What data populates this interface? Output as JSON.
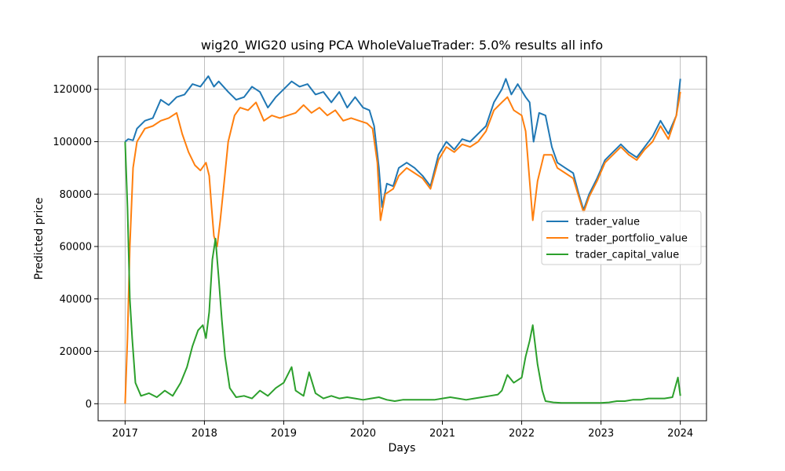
{
  "chart_data": {
    "type": "line",
    "title": "wig20_WIG20 using PCA WholeValueTrader: 5.0% results all info",
    "xlabel": "Days",
    "ylabel": "Predicted price",
    "xlim": [
      2016.66,
      2024.33
    ],
    "ylim": [
      -6500,
      132500
    ],
    "x_ticks": [
      2017,
      2018,
      2019,
      2020,
      2021,
      2022,
      2023,
      2024
    ],
    "x_tick_labels": [
      "2017",
      "2018",
      "2019",
      "2020",
      "2021",
      "2022",
      "2023",
      "2024"
    ],
    "y_ticks": [
      0,
      20000,
      40000,
      60000,
      80000,
      100000,
      120000
    ],
    "y_tick_labels": [
      "0",
      "20000",
      "40000",
      "60000",
      "80000",
      "100000",
      "120000"
    ],
    "grid": true,
    "legend_position": "center-right",
    "series": [
      {
        "name": "trader_value",
        "color": "#1f77b4",
        "points": [
          [
            2017.0,
            100000
          ],
          [
            2017.04,
            101000
          ],
          [
            2017.1,
            100500
          ],
          [
            2017.15,
            105000
          ],
          [
            2017.25,
            108000
          ],
          [
            2017.35,
            109000
          ],
          [
            2017.45,
            116000
          ],
          [
            2017.55,
            114000
          ],
          [
            2017.65,
            117000
          ],
          [
            2017.75,
            118000
          ],
          [
            2017.85,
            122000
          ],
          [
            2017.95,
            121000
          ],
          [
            2018.05,
            125000
          ],
          [
            2018.12,
            121000
          ],
          [
            2018.18,
            123000
          ],
          [
            2018.3,
            119000
          ],
          [
            2018.4,
            116000
          ],
          [
            2018.5,
            117000
          ],
          [
            2018.6,
            121000
          ],
          [
            2018.7,
            119000
          ],
          [
            2018.8,
            113000
          ],
          [
            2018.9,
            117000
          ],
          [
            2019.0,
            120000
          ],
          [
            2019.1,
            123000
          ],
          [
            2019.2,
            121000
          ],
          [
            2019.3,
            122000
          ],
          [
            2019.4,
            118000
          ],
          [
            2019.5,
            119000
          ],
          [
            2019.6,
            115000
          ],
          [
            2019.7,
            119000
          ],
          [
            2019.8,
            113000
          ],
          [
            2019.9,
            117000
          ],
          [
            2020.0,
            113000
          ],
          [
            2020.08,
            112000
          ],
          [
            2020.14,
            106000
          ],
          [
            2020.2,
            90000
          ],
          [
            2020.24,
            75000
          ],
          [
            2020.3,
            84000
          ],
          [
            2020.38,
            83000
          ],
          [
            2020.45,
            90000
          ],
          [
            2020.55,
            92000
          ],
          [
            2020.65,
            90000
          ],
          [
            2020.75,
            87000
          ],
          [
            2020.85,
            83000
          ],
          [
            2020.95,
            95000
          ],
          [
            2021.05,
            100000
          ],
          [
            2021.15,
            97000
          ],
          [
            2021.25,
            101000
          ],
          [
            2021.35,
            100000
          ],
          [
            2021.45,
            103000
          ],
          [
            2021.55,
            106000
          ],
          [
            2021.65,
            115000
          ],
          [
            2021.75,
            120000
          ],
          [
            2021.8,
            124000
          ],
          [
            2021.87,
            118000
          ],
          [
            2021.95,
            122000
          ],
          [
            2022.05,
            117000
          ],
          [
            2022.1,
            115000
          ],
          [
            2022.15,
            100000
          ],
          [
            2022.22,
            111000
          ],
          [
            2022.3,
            110000
          ],
          [
            2022.38,
            98000
          ],
          [
            2022.45,
            92000
          ],
          [
            2022.55,
            90000
          ],
          [
            2022.65,
            88000
          ],
          [
            2022.72,
            80000
          ],
          [
            2022.78,
            74000
          ],
          [
            2022.85,
            80000
          ],
          [
            2022.95,
            86000
          ],
          [
            2023.05,
            93000
          ],
          [
            2023.15,
            96000
          ],
          [
            2023.25,
            99000
          ],
          [
            2023.35,
            96000
          ],
          [
            2023.45,
            94000
          ],
          [
            2023.55,
            98000
          ],
          [
            2023.65,
            102000
          ],
          [
            2023.75,
            108000
          ],
          [
            2023.85,
            103000
          ],
          [
            2023.95,
            110000
          ],
          [
            2024.0,
            124000
          ]
        ]
      },
      {
        "name": "trader_portfolio_value",
        "color": "#ff7f0e",
        "points": [
          [
            2017.0,
            0
          ],
          [
            2017.03,
            25000
          ],
          [
            2017.06,
            60000
          ],
          [
            2017.1,
            90000
          ],
          [
            2017.15,
            100000
          ],
          [
            2017.25,
            105000
          ],
          [
            2017.35,
            106000
          ],
          [
            2017.45,
            108000
          ],
          [
            2017.55,
            109000
          ],
          [
            2017.65,
            111000
          ],
          [
            2017.72,
            103000
          ],
          [
            2017.8,
            96000
          ],
          [
            2017.88,
            91000
          ],
          [
            2017.95,
            89000
          ],
          [
            2018.02,
            92000
          ],
          [
            2018.06,
            87000
          ],
          [
            2018.09,
            75000
          ],
          [
            2018.12,
            64000
          ],
          [
            2018.16,
            60000
          ],
          [
            2018.2,
            70000
          ],
          [
            2018.25,
            85000
          ],
          [
            2018.3,
            100000
          ],
          [
            2018.38,
            110000
          ],
          [
            2018.45,
            113000
          ],
          [
            2018.55,
            112000
          ],
          [
            2018.65,
            115000
          ],
          [
            2018.75,
            108000
          ],
          [
            2018.85,
            110000
          ],
          [
            2018.95,
            109000
          ],
          [
            2019.05,
            110000
          ],
          [
            2019.15,
            111000
          ],
          [
            2019.25,
            114000
          ],
          [
            2019.35,
            111000
          ],
          [
            2019.45,
            113000
          ],
          [
            2019.55,
            110000
          ],
          [
            2019.65,
            112000
          ],
          [
            2019.75,
            108000
          ],
          [
            2019.85,
            109000
          ],
          [
            2019.95,
            108000
          ],
          [
            2020.05,
            107000
          ],
          [
            2020.12,
            105000
          ],
          [
            2020.18,
            92000
          ],
          [
            2020.22,
            70000
          ],
          [
            2020.28,
            80000
          ],
          [
            2020.38,
            82000
          ],
          [
            2020.45,
            87000
          ],
          [
            2020.55,
            90000
          ],
          [
            2020.65,
            88000
          ],
          [
            2020.75,
            86000
          ],
          [
            2020.85,
            82000
          ],
          [
            2020.95,
            93000
          ],
          [
            2021.05,
            98000
          ],
          [
            2021.15,
            96000
          ],
          [
            2021.25,
            99000
          ],
          [
            2021.35,
            98000
          ],
          [
            2021.45,
            100000
          ],
          [
            2021.55,
            104000
          ],
          [
            2021.65,
            112000
          ],
          [
            2021.75,
            115000
          ],
          [
            2021.82,
            117000
          ],
          [
            2021.9,
            112000
          ],
          [
            2022.0,
            110000
          ],
          [
            2022.05,
            104000
          ],
          [
            2022.1,
            85000
          ],
          [
            2022.14,
            70000
          ],
          [
            2022.2,
            85000
          ],
          [
            2022.28,
            95000
          ],
          [
            2022.38,
            95000
          ],
          [
            2022.45,
            90000
          ],
          [
            2022.55,
            88000
          ],
          [
            2022.65,
            86000
          ],
          [
            2022.72,
            79000
          ],
          [
            2022.78,
            73000
          ],
          [
            2022.85,
            79000
          ],
          [
            2022.95,
            85000
          ],
          [
            2023.05,
            92000
          ],
          [
            2023.15,
            95000
          ],
          [
            2023.25,
            98000
          ],
          [
            2023.35,
            95000
          ],
          [
            2023.45,
            93000
          ],
          [
            2023.55,
            97000
          ],
          [
            2023.65,
            100000
          ],
          [
            2023.75,
            106000
          ],
          [
            2023.85,
            101000
          ],
          [
            2023.95,
            110000
          ],
          [
            2024.0,
            119000
          ]
        ]
      },
      {
        "name": "trader_capital_value",
        "color": "#2ca02c",
        "points": [
          [
            2017.0,
            100000
          ],
          [
            2017.03,
            75000
          ],
          [
            2017.06,
            40000
          ],
          [
            2017.09,
            25000
          ],
          [
            2017.13,
            8000
          ],
          [
            2017.2,
            3000
          ],
          [
            2017.3,
            4000
          ],
          [
            2017.4,
            2500
          ],
          [
            2017.5,
            5000
          ],
          [
            2017.6,
            3000
          ],
          [
            2017.7,
            8000
          ],
          [
            2017.78,
            14000
          ],
          [
            2017.85,
            22000
          ],
          [
            2017.92,
            28000
          ],
          [
            2017.98,
            30000
          ],
          [
            2018.02,
            25000
          ],
          [
            2018.06,
            35000
          ],
          [
            2018.1,
            55000
          ],
          [
            2018.14,
            63000
          ],
          [
            2018.18,
            48000
          ],
          [
            2018.22,
            32000
          ],
          [
            2018.26,
            18000
          ],
          [
            2018.32,
            6000
          ],
          [
            2018.4,
            2500
          ],
          [
            2018.5,
            3000
          ],
          [
            2018.6,
            2000
          ],
          [
            2018.7,
            5000
          ],
          [
            2018.8,
            3000
          ],
          [
            2018.9,
            6000
          ],
          [
            2019.0,
            8000
          ],
          [
            2019.1,
            14000
          ],
          [
            2019.15,
            5000
          ],
          [
            2019.25,
            3000
          ],
          [
            2019.32,
            12000
          ],
          [
            2019.4,
            4000
          ],
          [
            2019.5,
            2000
          ],
          [
            2019.6,
            3000
          ],
          [
            2019.7,
            2000
          ],
          [
            2019.8,
            2500
          ],
          [
            2019.9,
            2000
          ],
          [
            2020.0,
            1500
          ],
          [
            2020.1,
            2000
          ],
          [
            2020.2,
            2500
          ],
          [
            2020.3,
            1500
          ],
          [
            2020.4,
            1000
          ],
          [
            2020.5,
            1500
          ],
          [
            2020.6,
            1500
          ],
          [
            2020.7,
            1500
          ],
          [
            2020.8,
            1500
          ],
          [
            2020.9,
            1500
          ],
          [
            2021.0,
            2000
          ],
          [
            2021.1,
            2500
          ],
          [
            2021.2,
            2000
          ],
          [
            2021.3,
            1500
          ],
          [
            2021.4,
            2000
          ],
          [
            2021.5,
            2500
          ],
          [
            2021.6,
            3000
          ],
          [
            2021.7,
            3500
          ],
          [
            2021.75,
            5000
          ],
          [
            2021.82,
            11000
          ],
          [
            2021.9,
            8000
          ],
          [
            2022.0,
            10000
          ],
          [
            2022.05,
            18000
          ],
          [
            2022.1,
            24000
          ],
          [
            2022.14,
            30000
          ],
          [
            2022.2,
            15000
          ],
          [
            2022.26,
            5000
          ],
          [
            2022.3,
            1000
          ],
          [
            2022.4,
            500
          ],
          [
            2022.5,
            300
          ],
          [
            2022.6,
            300
          ],
          [
            2022.7,
            300
          ],
          [
            2022.8,
            300
          ],
          [
            2022.9,
            300
          ],
          [
            2023.0,
            300
          ],
          [
            2023.1,
            500
          ],
          [
            2023.2,
            1000
          ],
          [
            2023.3,
            1000
          ],
          [
            2023.4,
            1500
          ],
          [
            2023.5,
            1500
          ],
          [
            2023.6,
            2000
          ],
          [
            2023.7,
            2000
          ],
          [
            2023.8,
            2000
          ],
          [
            2023.9,
            2500
          ],
          [
            2023.97,
            10000
          ],
          [
            2024.0,
            3000
          ]
        ]
      }
    ]
  }
}
